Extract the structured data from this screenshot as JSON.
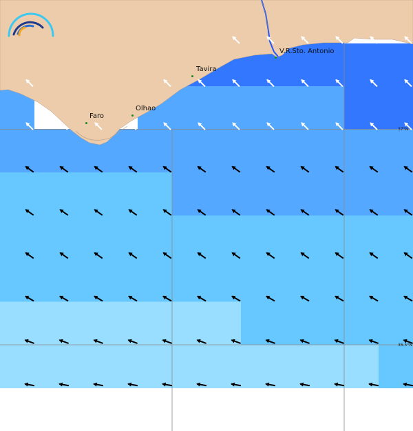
{
  "map": {
    "palette": [
      "#2255ff",
      "#3377ff",
      "#55a8ff",
      "#66c8ff",
      "#99ddff"
    ],
    "land_color": "#ecccaa",
    "nodata_color": "#ffffff",
    "cell_levels": [
      [
        1,
        1,
        1,
        1,
        1,
        1,
        1,
        0,
        0,
        0,
        0,
        0
      ],
      [
        1,
        1,
        1,
        1,
        1,
        1,
        1,
        1,
        1,
        1,
        1,
        1
      ],
      [
        2,
        2,
        2,
        2,
        2,
        2,
        2,
        2,
        2,
        2,
        1,
        1
      ],
      [
        2,
        2,
        2,
        2,
        2,
        2,
        2,
        2,
        2,
        2,
        2,
        2
      ],
      [
        3,
        3,
        3,
        3,
        3,
        2,
        2,
        2,
        2,
        2,
        2,
        2
      ],
      [
        3,
        3,
        3,
        3,
        3,
        3,
        3,
        3,
        3,
        3,
        3,
        3
      ],
      [
        3,
        3,
        3,
        3,
        3,
        3,
        3,
        3,
        3,
        3,
        3,
        3
      ],
      [
        4,
        4,
        4,
        4,
        4,
        4,
        4,
        3,
        3,
        3,
        3,
        3
      ],
      [
        4,
        4,
        4,
        4,
        4,
        4,
        4,
        4,
        4,
        4,
        4,
        3
      ]
    ],
    "arrow_direction_deg_by_row": [
      315,
      315,
      315,
      305,
      305,
      305,
      300,
      290,
      280
    ],
    "places": [
      {
        "name": "Faro"
      },
      {
        "name": "Olhao"
      },
      {
        "name": "Tavira"
      },
      {
        "name": "V.R.Sto. Antonio"
      }
    ],
    "latitude_labels": [
      "37°N",
      "36.5°N"
    ]
  }
}
